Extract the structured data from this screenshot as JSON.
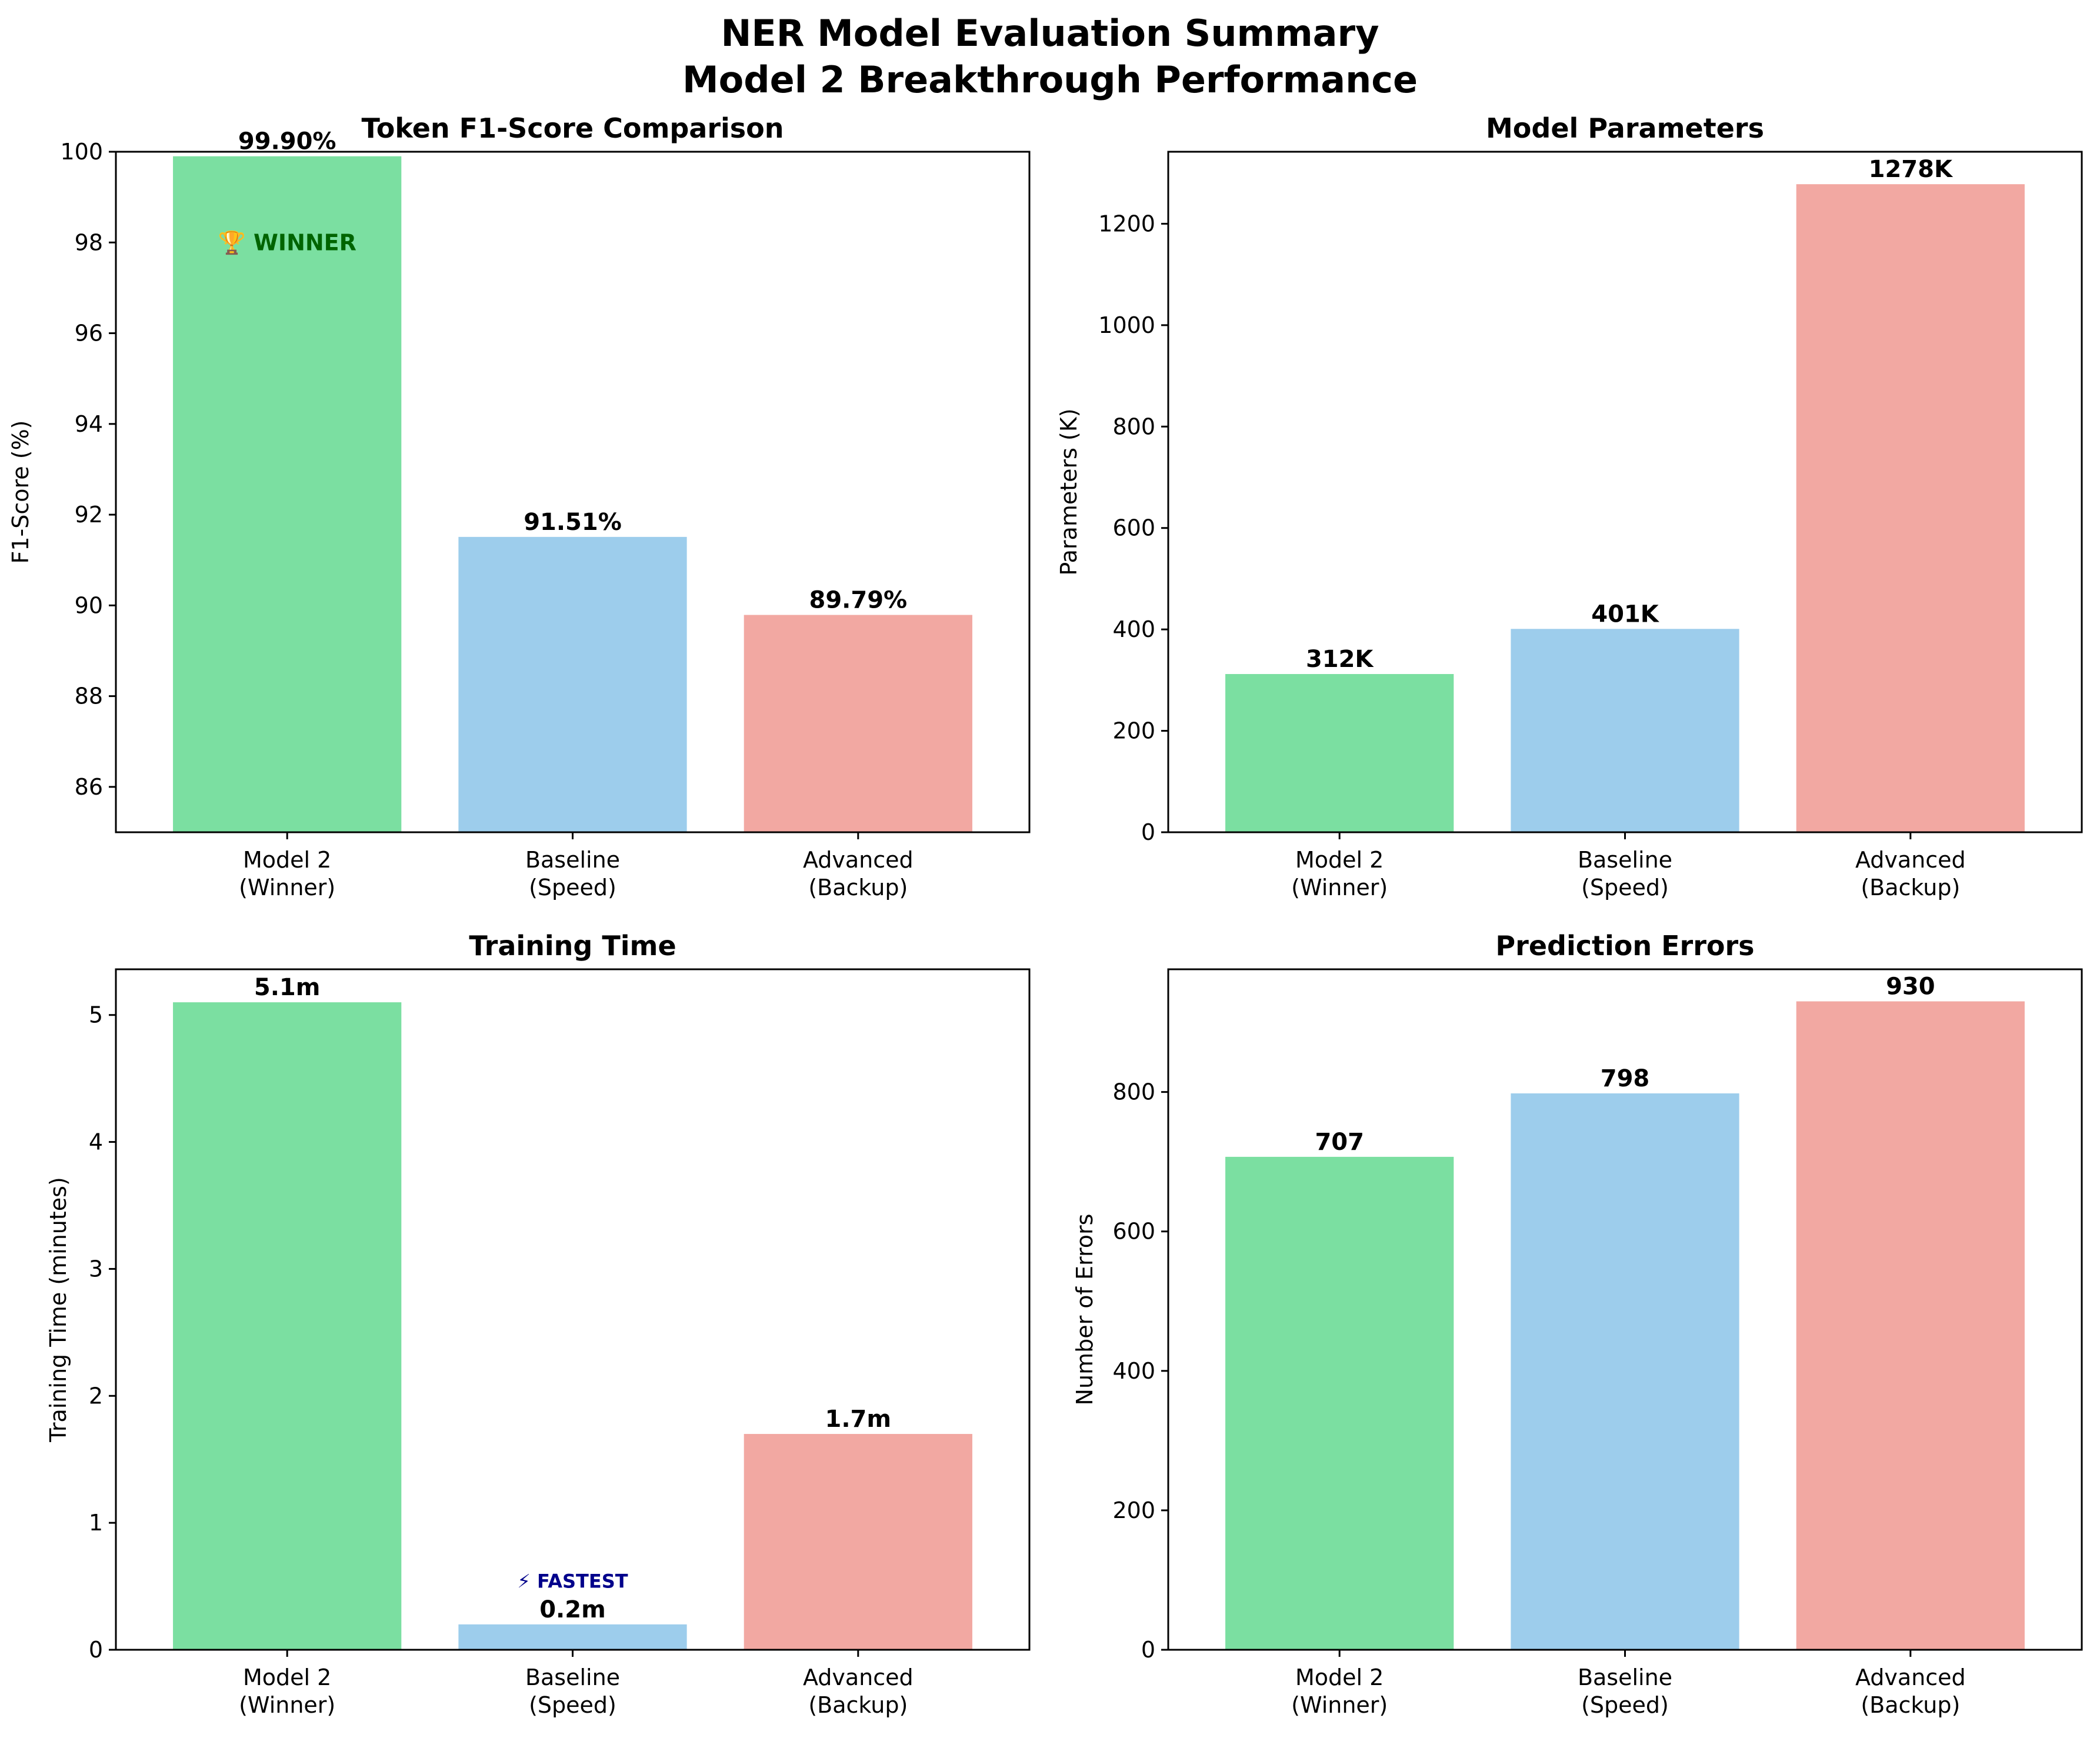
{
  "figure": {
    "title_line1": "NER Model Evaluation Summary",
    "title_line2": "Model 2 Breakthrough Performance"
  },
  "colors": {
    "model2": "#7BDFA1",
    "baseline": "#9DCDEC",
    "advanced": "#F2A8A2",
    "winner_text": "#006400",
    "fastest_text": "#00008B"
  },
  "chart_data": [
    {
      "type": "bar",
      "title": "Token F1-Score Comparison",
      "ylabel": "F1-Score (%)",
      "categories": [
        [
          "Model 2",
          "(Winner)"
        ],
        [
          "Baseline",
          "(Speed)"
        ],
        [
          "Advanced",
          "(Backup)"
        ]
      ],
      "values": [
        99.9,
        91.51,
        89.79
      ],
      "value_labels": [
        "99.90%",
        "91.51%",
        "89.79%"
      ],
      "ylim": [
        85,
        100
      ],
      "yticks": [
        86,
        88,
        90,
        92,
        94,
        96,
        98,
        100
      ],
      "annotation": {
        "text": "🏆 WINNER",
        "bar": 0,
        "y": 98,
        "color": "#006400"
      }
    },
    {
      "type": "bar",
      "title": "Model Parameters",
      "ylabel": "Parameters (K)",
      "categories": [
        [
          "Model 2",
          "(Winner)"
        ],
        [
          "Baseline",
          "(Speed)"
        ],
        [
          "Advanced",
          "(Backup)"
        ]
      ],
      "values": [
        312,
        401,
        1278
      ],
      "value_labels": [
        "312K",
        "401K",
        "1278K"
      ],
      "ylim": [
        0,
        1342
      ],
      "yticks": [
        0,
        200,
        400,
        600,
        800,
        1000,
        1200
      ]
    },
    {
      "type": "bar",
      "title": "Training Time",
      "ylabel": "Training Time (minutes)",
      "categories": [
        [
          "Model 2",
          "(Winner)"
        ],
        [
          "Baseline",
          "(Speed)"
        ],
        [
          "Advanced",
          "(Backup)"
        ]
      ],
      "values": [
        5.1,
        0.2,
        1.7
      ],
      "value_labels": [
        "5.1m",
        "0.2m",
        "1.7m"
      ],
      "ylim": [
        0,
        5.36
      ],
      "yticks": [
        0,
        1,
        2,
        3,
        4,
        5
      ],
      "annotation": {
        "text": "⚡ FASTEST",
        "bar": 1,
        "y": 0.55,
        "color": "#00008B"
      }
    },
    {
      "type": "bar",
      "title": "Prediction Errors",
      "ylabel": "Number of Errors",
      "categories": [
        [
          "Model 2",
          "(Winner)"
        ],
        [
          "Baseline",
          "(Speed)"
        ],
        [
          "Advanced",
          "(Backup)"
        ]
      ],
      "values": [
        707,
        798,
        930
      ],
      "value_labels": [
        "707",
        "798",
        "930"
      ],
      "ylim": [
        0,
        976
      ],
      "yticks": [
        0,
        200,
        400,
        600,
        800
      ]
    }
  ]
}
